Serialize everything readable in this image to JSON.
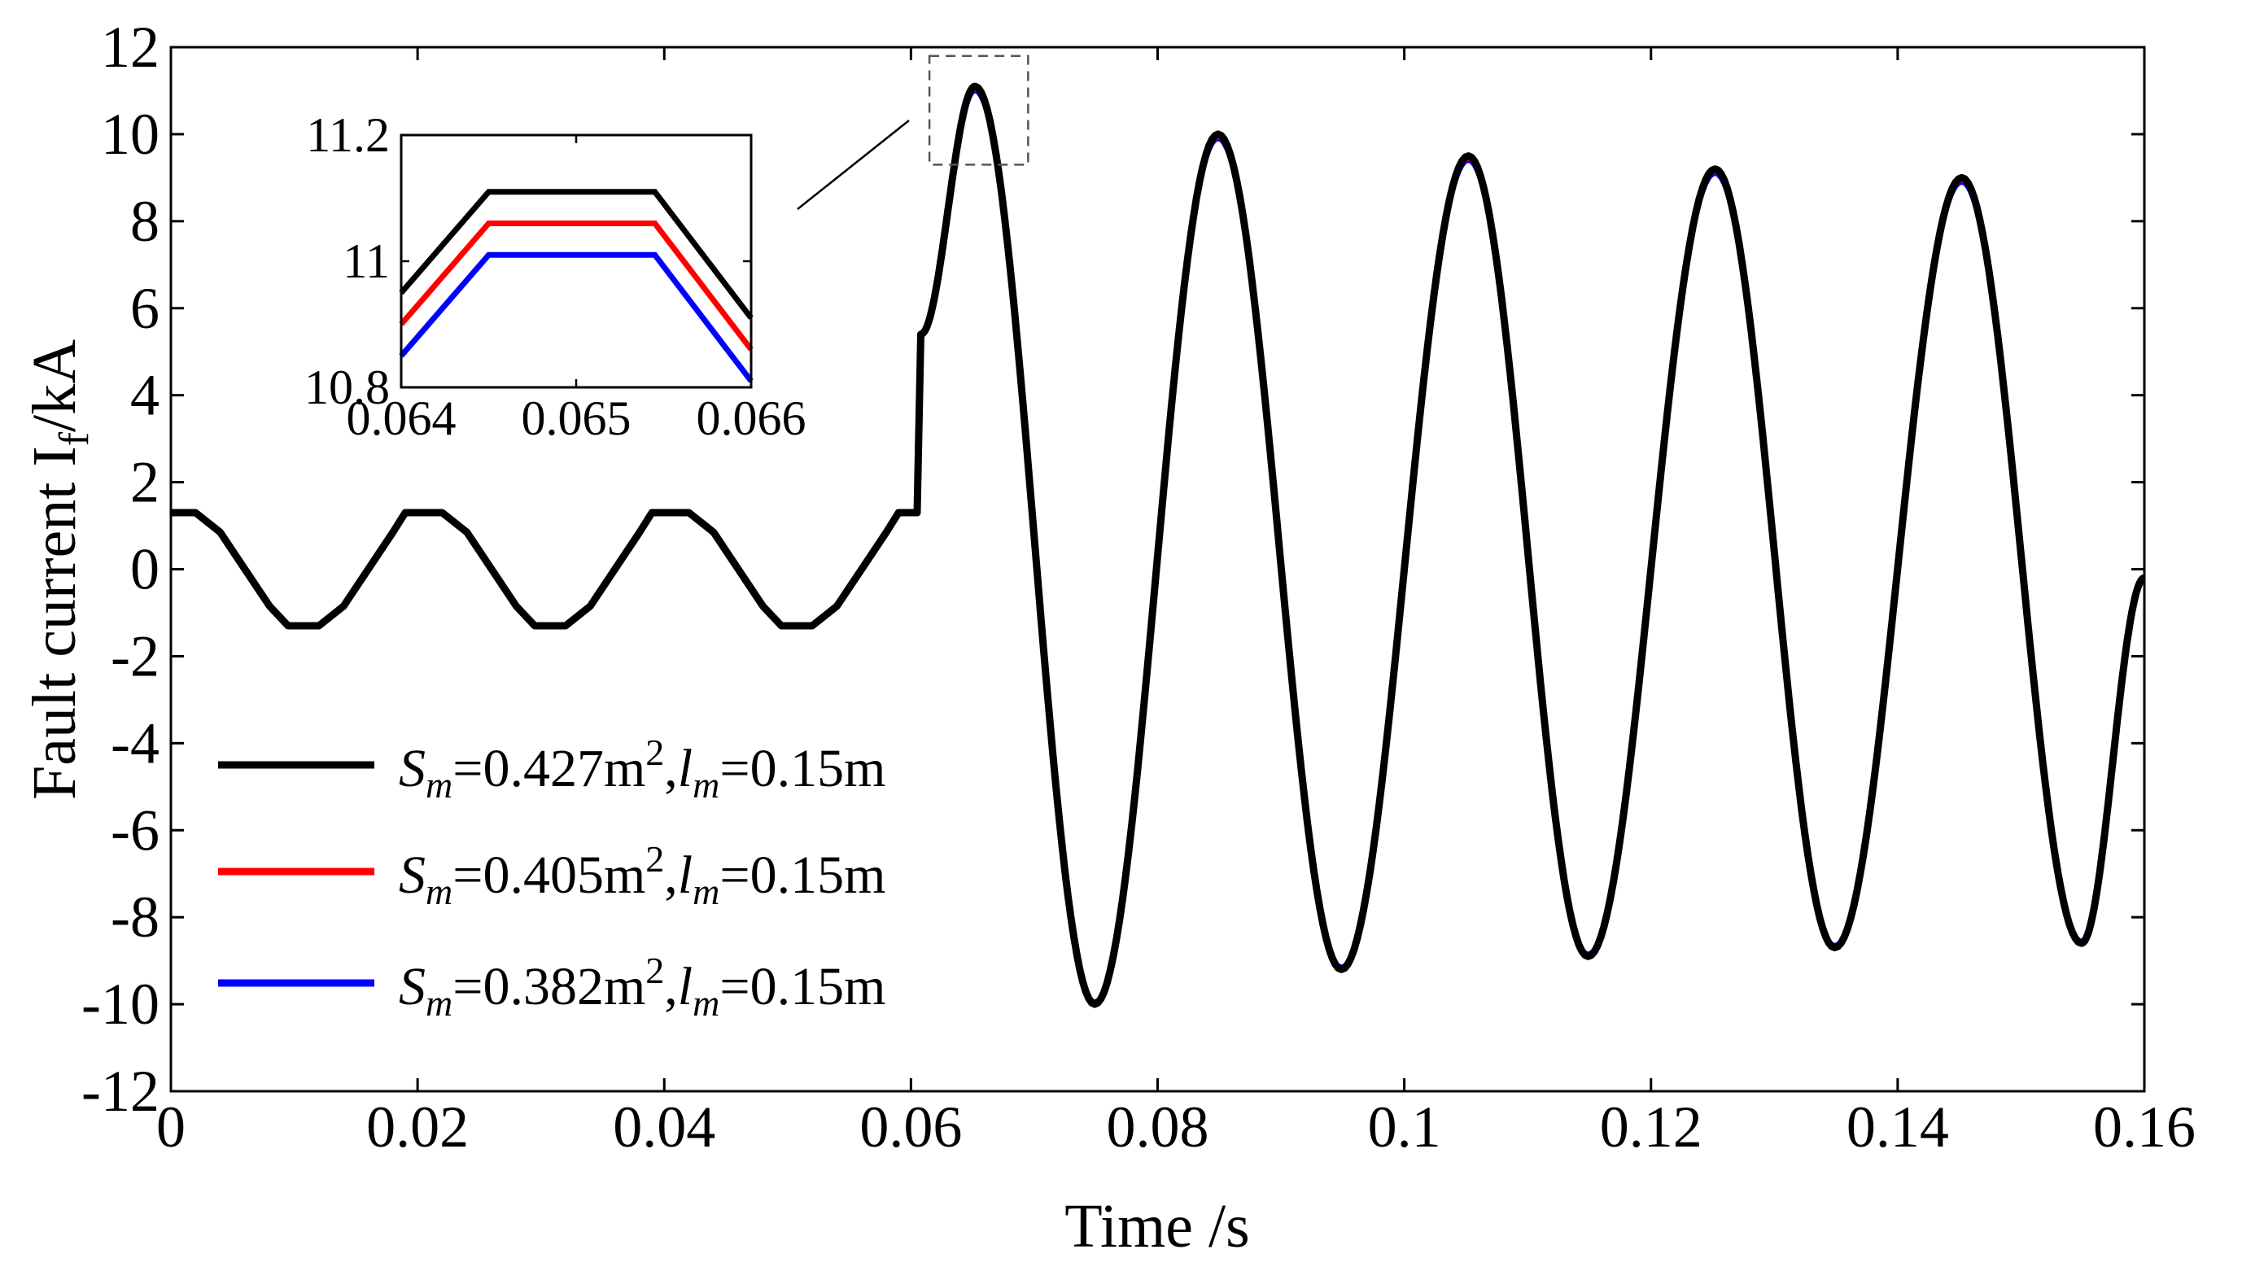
{
  "chart_data": {
    "type": "line",
    "title": "",
    "xlabel": "Time /s",
    "ylabel_main": "Fault current I",
    "ylabel_sub": "f",
    "ylabel_tail": "/kA",
    "xlim": [
      0,
      0.16
    ],
    "ylim": [
      -12,
      12
    ],
    "x_ticks": [
      0,
      0.02,
      0.04,
      0.06,
      0.08,
      0.1,
      0.12,
      0.14,
      0.16
    ],
    "x_tick_labels": [
      "0",
      "0.02",
      "0.04",
      "0.06",
      "0.08",
      "0.1",
      "0.12",
      "0.14",
      "0.16"
    ],
    "y_ticks": [
      -12,
      -10,
      -8,
      -6,
      -4,
      -2,
      0,
      2,
      4,
      6,
      8,
      10,
      12
    ],
    "y_tick_labels": [
      "-12",
      "-10",
      "-8",
      "-6",
      "-4",
      "-2",
      "0",
      "2",
      "4",
      "6",
      "8",
      "10",
      "12"
    ],
    "grid": false,
    "legend_position": "lower-left",
    "series": [
      {
        "name": "Sm=0.427m2,lm=0.15m",
        "label": {
          "s": "S",
          "s_sub": "m",
          "val1": "=0.427m",
          "sup": "2",
          "comma": ",",
          "l": "l",
          "l_sub": "m",
          "val2": "=0.15m"
        },
        "color": "#000000",
        "offset": 0.0,
        "note": "drawn on top"
      },
      {
        "name": "Sm=0.405m2,lm=0.15m",
        "label": {
          "s": "S",
          "s_sub": "m",
          "val1": "=0.405m",
          "sup": "2",
          "comma": ",",
          "l": "l",
          "l_sub": "m",
          "val2": "=0.15m"
        },
        "color": "#ff0000",
        "offset": -0.05
      },
      {
        "name": "Sm=0.382m2,lm=0.15m",
        "label": {
          "s": "S",
          "s_sub": "m",
          "val1": "=0.382m",
          "sup": "2",
          "comma": ",",
          "l": "l",
          "l_sub": "m",
          "val2": "=0.15m"
        },
        "color": "#0000ff",
        "offset": -0.1
      }
    ],
    "waveform": {
      "pre_fault": [
        [
          0,
          1.3
        ],
        [
          0.002,
          1.3
        ],
        [
          0.004,
          0.85
        ],
        [
          0.006,
          0.0
        ],
        [
          0.008,
          -0.85
        ],
        [
          0.0095,
          -1.3
        ],
        [
          0.012,
          -1.3
        ],
        [
          0.014,
          -0.85
        ],
        [
          0.016,
          0.0
        ],
        [
          0.018,
          0.85
        ],
        [
          0.019,
          1.3
        ],
        [
          0.022,
          1.3
        ],
        [
          0.024,
          0.85
        ],
        [
          0.026,
          0.0
        ],
        [
          0.028,
          -0.85
        ],
        [
          0.0295,
          -1.3
        ],
        [
          0.032,
          -1.3
        ],
        [
          0.034,
          -0.85
        ],
        [
          0.036,
          0.0
        ],
        [
          0.038,
          0.85
        ],
        [
          0.039,
          1.3
        ],
        [
          0.042,
          1.3
        ],
        [
          0.044,
          0.85
        ],
        [
          0.046,
          0.0
        ],
        [
          0.048,
          -0.85
        ],
        [
          0.0495,
          -1.3
        ],
        [
          0.052,
          -1.3
        ],
        [
          0.054,
          -0.85
        ],
        [
          0.056,
          0.0
        ],
        [
          0.058,
          0.85
        ],
        [
          0.059,
          1.3
        ],
        [
          0.0605,
          1.3
        ]
      ],
      "fault_start": 0.0605,
      "peaks": [
        [
          0.0652,
          11.1
        ],
        [
          0.0749,
          -10.0
        ],
        [
          0.0849,
          10.0
        ],
        [
          0.0949,
          -9.2
        ],
        [
          0.1052,
          9.5
        ],
        [
          0.1149,
          -8.9
        ],
        [
          0.1252,
          9.2
        ],
        [
          0.1349,
          -8.7
        ],
        [
          0.1452,
          9.0
        ],
        [
          0.1549,
          -8.6
        ]
      ],
      "end": [
        0.16,
        -0.2
      ]
    },
    "inset": {
      "xlim": [
        0.064,
        0.066
      ],
      "ylim": [
        10.8,
        11.2
      ],
      "x_ticks": [
        0.064,
        0.065,
        0.066
      ],
      "x_tick_labels": [
        "0.064",
        "0.065",
        "0.066"
      ],
      "y_ticks": [
        10.8,
        11,
        11.2
      ],
      "y_tick_labels": [
        "10.8",
        "11",
        "11.2"
      ],
      "series_points": [
        {
          "color": "#000000",
          "points": [
            [
              0.064,
              10.95
            ],
            [
              0.0645,
              11.11
            ],
            [
              0.06545,
              11.11
            ],
            [
              0.066,
              10.91
            ]
          ]
        },
        {
          "color": "#ff0000",
          "points": [
            [
              0.064,
              10.9
            ],
            [
              0.0645,
              11.06
            ],
            [
              0.06545,
              11.06
            ],
            [
              0.066,
              10.86
            ]
          ]
        },
        {
          "color": "#0000ff",
          "points": [
            [
              0.064,
              10.85
            ],
            [
              0.0645,
              11.01
            ],
            [
              0.06545,
              11.01
            ],
            [
              0.066,
              10.81
            ]
          ]
        }
      ]
    },
    "zoom_box": {
      "x": [
        0.0615,
        0.0695
      ],
      "y": [
        9.3,
        11.8
      ]
    }
  }
}
